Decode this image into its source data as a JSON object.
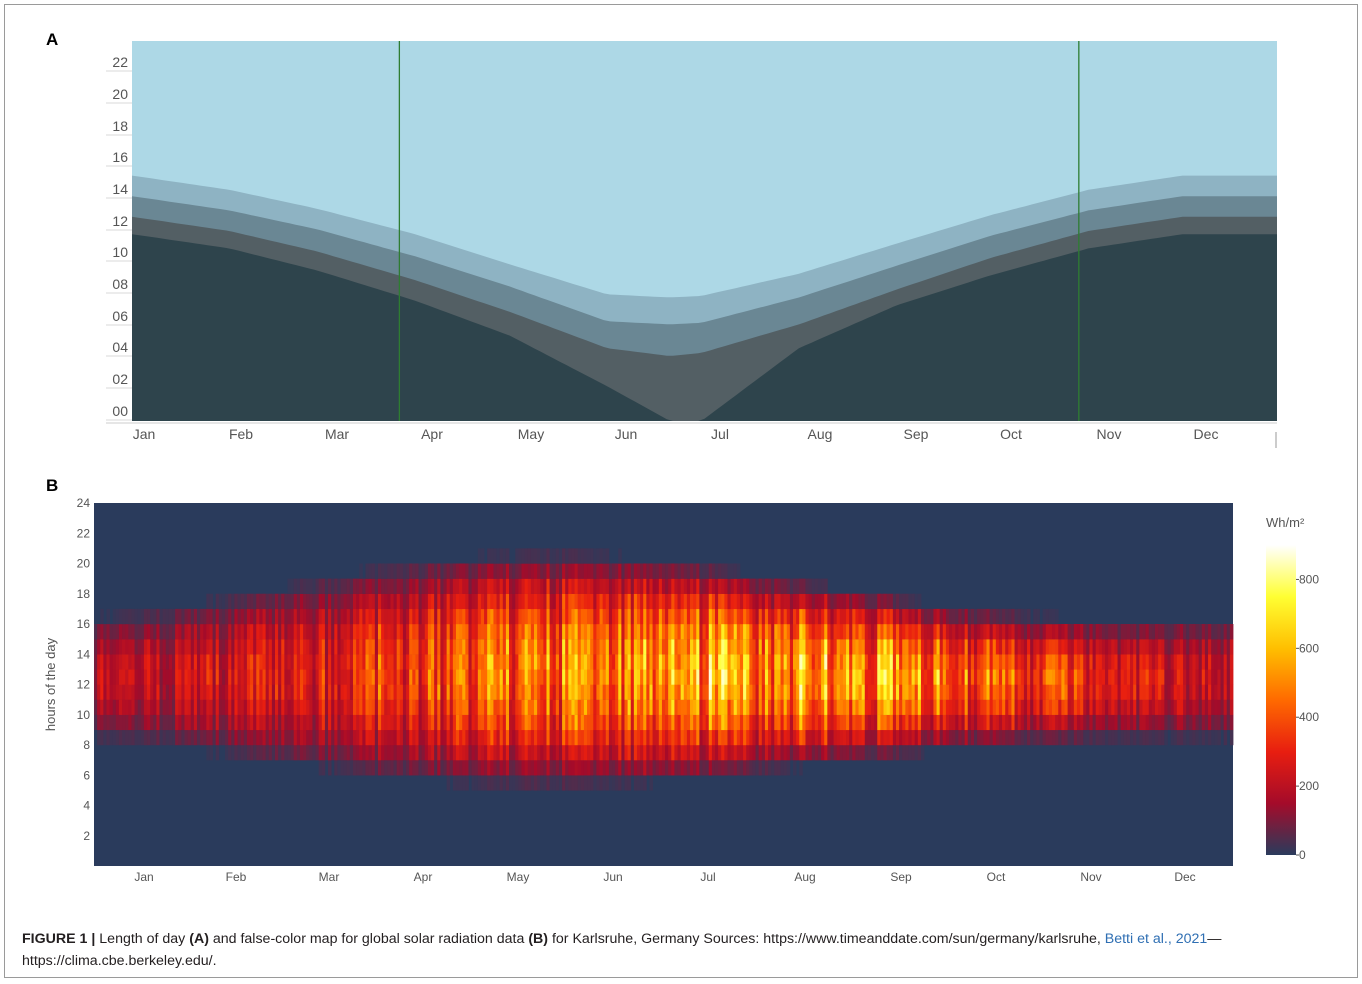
{
  "panel_a_label": "A",
  "panel_b_label": "B",
  "chart_data": [
    {
      "panel": "A",
      "type": "area",
      "title": "",
      "xlabel": "",
      "ylabel": "",
      "x_tick_labels": [
        "Jan",
        "Feb",
        "Mar",
        "Apr",
        "May",
        "Jun",
        "Jul",
        "Aug",
        "Sep",
        "Oct",
        "Nov",
        "Dec"
      ],
      "y_tick_labels": [
        "00",
        "02",
        "04",
        "06",
        "08",
        "10",
        "12",
        "14",
        "16",
        "18",
        "20",
        "22"
      ],
      "ylim": [
        0,
        24
      ],
      "xlim_days": [
        1,
        365
      ],
      "grid": false,
      "day_of_year": [
        1,
        32,
        60,
        91,
        121,
        152,
        172,
        182,
        213,
        244,
        274,
        305,
        335,
        365
      ],
      "series": [
        {
          "color": "#2e444c",
          "values": [
            11.8,
            10.9,
            9.5,
            7.6,
            5.4,
            2.2,
            0.0,
            0.0,
            4.6,
            7.3,
            9.2,
            10.9,
            11.8,
            11.8
          ]
        },
        {
          "color": "#535f64",
          "values": [
            12.9,
            12.0,
            10.7,
            8.9,
            6.9,
            4.6,
            4.1,
            4.3,
            6.1,
            8.3,
            10.3,
            12.0,
            12.9,
            12.9
          ]
        },
        {
          "color": "#6a8794",
          "values": [
            14.2,
            13.3,
            12.1,
            10.4,
            8.5,
            6.3,
            6.1,
            6.2,
            7.8,
            9.8,
            11.7,
            13.3,
            14.2,
            14.2
          ]
        },
        {
          "color": "#8eb3c3",
          "values": [
            15.5,
            14.6,
            13.4,
            11.8,
            9.9,
            8.0,
            7.8,
            7.9,
            9.3,
            11.2,
            13.0,
            14.6,
            15.5,
            15.5
          ]
        },
        {
          "color": "#add8e6",
          "values": [
            24,
            24,
            24,
            24,
            24,
            24,
            24,
            24,
            24,
            24,
            24,
            24,
            24,
            24
          ]
        }
      ],
      "vertical_markers_day": [
        86,
        302
      ],
      "vertical_marker_color": "#2e7d32"
    },
    {
      "panel": "B",
      "type": "heatmap",
      "title": "",
      "xlabel": "",
      "ylabel": "hours of the day",
      "x_tick_labels": [
        "Jan",
        "Feb",
        "Mar",
        "Apr",
        "May",
        "Jun",
        "Jul",
        "Aug",
        "Sep",
        "Oct",
        "Nov",
        "Dec"
      ],
      "y_tick_labels": [
        "2",
        "4",
        "6",
        "8",
        "10",
        "12",
        "14",
        "16",
        "18",
        "20",
        "22",
        "24"
      ],
      "ylim": [
        0,
        24
      ],
      "background_color": "#2a3b5c",
      "colorbar": {
        "title": "Wh/m²",
        "min": 0,
        "max": 900,
        "tick_labels": [
          "0",
          "200",
          "400",
          "600",
          "800"
        ],
        "colors": [
          "#2a3b5c",
          "#a40b2a",
          "#e81e10",
          "#ff6a00",
          "#ffbf00",
          "#ffff33",
          "#ffffff"
        ]
      },
      "daily_peak_wh_m2": [
        300,
        310,
        330,
        360,
        390,
        430,
        470,
        520,
        560,
        600,
        640,
        690,
        720,
        760,
        800,
        830,
        850,
        860,
        850,
        830,
        790,
        740,
        680,
        620,
        560,
        500,
        440,
        380,
        330,
        300
      ],
      "sunrise_hour": [
        8.2,
        8.0,
        7.7,
        7.3,
        6.9,
        6.5,
        6.1,
        5.8,
        5.5,
        5.3,
        5.2,
        5.1,
        5.1,
        5.2,
        5.3,
        5.6,
        5.8,
        6.1,
        6.4,
        6.7,
        7.0,
        7.3,
        7.6,
        7.8,
        8.0,
        8.1,
        8.2,
        8.2,
        8.2,
        8.2
      ],
      "sunset_hour": [
        16.6,
        16.9,
        17.3,
        17.8,
        18.3,
        18.8,
        19.3,
        19.8,
        20.2,
        20.5,
        20.7,
        20.8,
        20.8,
        20.7,
        20.5,
        20.2,
        19.8,
        19.4,
        19.0,
        18.5,
        18.1,
        17.6,
        17.2,
        16.9,
        16.7,
        16.5,
        16.4,
        16.4,
        16.5,
        16.6
      ]
    }
  ],
  "caption": {
    "label": "FIGURE 1 |",
    "t1": " Length of day ",
    "b1": "(A)",
    "t2": " and false-color map for global solar radiation data ",
    "b2": "(B)",
    "t3": " for Karlsruhe, Germany Sources: https://www.timeanddate.com/sun/germany/karlsruhe, ",
    "ref": "Betti et al., 2021",
    "t4": "—https://clima.cbe.berkeley.edu/."
  }
}
